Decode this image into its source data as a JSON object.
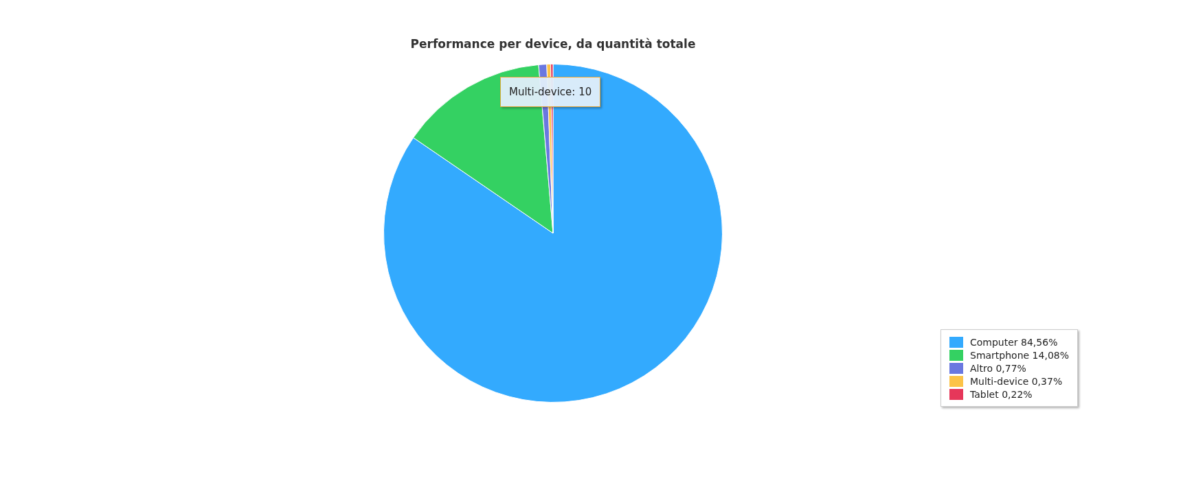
{
  "chart_data": {
    "type": "pie",
    "title": "Performance per device, da quantità totale",
    "categories": [
      "Computer",
      "Smartphone",
      "Altro",
      "Multi-device",
      "Tablet"
    ],
    "values": [
      84.56,
      14.08,
      0.77,
      0.37,
      0.22
    ],
    "value_labels": [
      "84,56%",
      "14,08%",
      "0,77%",
      "0,37%",
      "0,22%"
    ],
    "colors": [
      "#33aafe",
      "#34d162",
      "#6a78e0",
      "#fcc348",
      "#e6375a"
    ],
    "legend": "bottom right",
    "annotations": [
      "Multi-device: 10"
    ]
  }
}
